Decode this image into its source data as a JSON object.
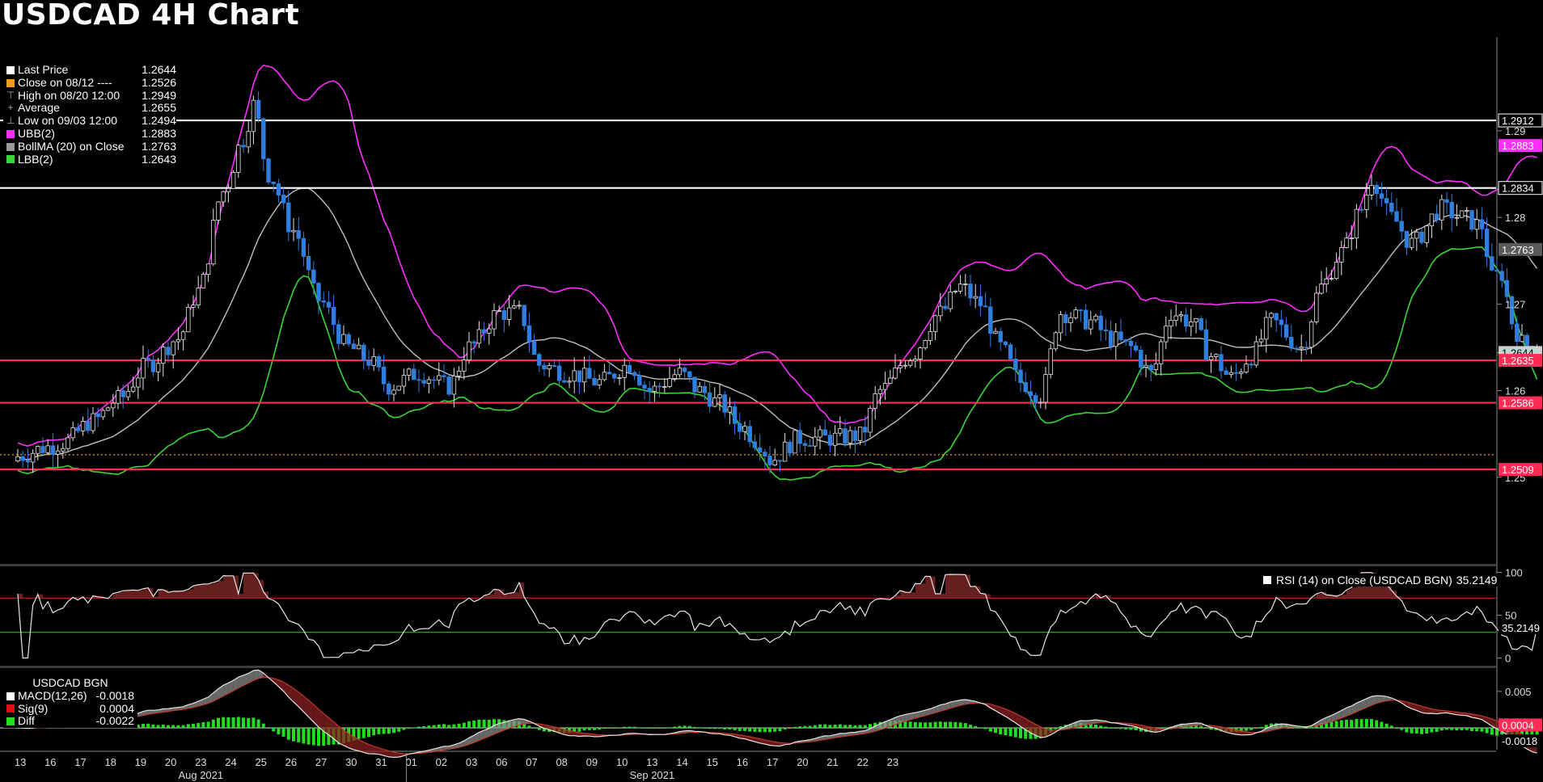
{
  "title": "USDCAD 4H Chart",
  "colors": {
    "up_fill": "#000000",
    "up_stroke": "#e6e6e6",
    "down_fill": "#2f7fe0",
    "ubb": "#ff2dff",
    "lbb": "#38d636",
    "bollma": "#bfbfbf",
    "resistance": "#ffffff",
    "support": "#ff2d55",
    "close_line": "#f39c12",
    "rsi_line": "#e6e6e6",
    "macd_line": "#e6e6e6",
    "signal_line": "#c0392b",
    "diff_hist": "#22dd22"
  },
  "main_legend": [
    {
      "label": "Last Price",
      "value": "1.2644",
      "swatch": "#ffffff",
      "glyph": ""
    },
    {
      "label": "Close on 08/12 ----",
      "value": "1.2526",
      "swatch": "#f39c12",
      "glyph": ""
    },
    {
      "label": "High on 08/20 12:00",
      "value": "1.2949",
      "swatch": "",
      "glyph": "⊤"
    },
    {
      "label": "Average",
      "value": "1.2655",
      "swatch": "",
      "glyph": "+"
    },
    {
      "label": "Low on 09/03 12:00",
      "value": "1.2494",
      "swatch": "",
      "glyph": "⊥"
    },
    {
      "label": "UBB(2)",
      "value": "1.2883",
      "swatch": "#ff2dff",
      "glyph": ""
    },
    {
      "label": "BollMA (20)  on Close",
      "value": "1.2763",
      "swatch": "#9a9a9a",
      "glyph": ""
    },
    {
      "label": "LBB(2)",
      "value": "1.2643",
      "swatch": "#38d636",
      "glyph": ""
    }
  ],
  "rsi_legend": {
    "label": "RSI (14)  on Close (USDCAD BGN)",
    "value": "35.2149"
  },
  "macd_legend": {
    "header": "USDCAD BGN",
    "items": [
      {
        "label": "MACD(12,26)",
        "value": "-0.0018",
        "swatch": "#ffffff"
      },
      {
        "label": "Sig(9)",
        "value": "0.0004",
        "swatch": "#e01010"
      },
      {
        "label": "Diff",
        "value": "-0.0022",
        "swatch": "#22dd22"
      }
    ]
  },
  "chart_data": [
    {
      "type": "candlestick",
      "title": "USDCAD 4H Chart",
      "ylim": [
        1.24,
        1.301
      ],
      "y_ticks": [
        "1.25",
        "1.26",
        "1.27",
        "1.28",
        "1.29"
      ],
      "y_tick_values": [
        1.25,
        1.26,
        1.27,
        1.28,
        1.29
      ],
      "x_day_labels": [
        "13",
        "16",
        "17",
        "18",
        "19",
        "20",
        "23",
        "24",
        "25",
        "26",
        "27",
        "30",
        "31",
        "01",
        "02",
        "03",
        "06",
        "07",
        "08",
        "09",
        "10",
        "13",
        "14",
        "15",
        "16",
        "17",
        "20",
        "21",
        "22",
        "23"
      ],
      "x_month_labels": [
        {
          "label": "Aug 2021",
          "day_index": 6
        },
        {
          "label": "Sep 2021",
          "day_index": 21
        }
      ],
      "month_divider_after_day_index": 12,
      "bars_per_day": 6,
      "price_anchors": [
        [
          0,
          1.2524
        ],
        [
          6,
          1.2535
        ],
        [
          9,
          1.254
        ],
        [
          15,
          1.2565
        ],
        [
          20,
          1.259
        ],
        [
          26,
          1.263
        ],
        [
          32,
          1.266
        ],
        [
          36,
          1.2715
        ],
        [
          41,
          1.283
        ],
        [
          45,
          1.289
        ],
        [
          47,
          1.293
        ],
        [
          50,
          1.285
        ],
        [
          55,
          1.2785
        ],
        [
          60,
          1.2705
        ],
        [
          66,
          1.265
        ],
        [
          70,
          1.2635
        ],
        [
          74,
          1.2605
        ],
        [
          80,
          1.262
        ],
        [
          86,
          1.2605
        ],
        [
          90,
          1.265
        ],
        [
          96,
          1.269
        ],
        [
          100,
          1.269
        ],
        [
          104,
          1.263
        ],
        [
          110,
          1.262
        ],
        [
          116,
          1.261
        ],
        [
          122,
          1.263
        ],
        [
          126,
          1.26
        ],
        [
          132,
          1.262
        ],
        [
          136,
          1.26
        ],
        [
          140,
          1.2585
        ],
        [
          144,
          1.256
        ],
        [
          148,
          1.254
        ],
        [
          150,
          1.252
        ],
        [
          156,
          1.2545
        ],
        [
          162,
          1.2545
        ],
        [
          168,
          1.2548
        ],
        [
          172,
          1.26
        ],
        [
          178,
          1.264
        ],
        [
          184,
          1.269
        ],
        [
          188,
          1.272
        ],
        [
          192,
          1.27
        ],
        [
          196,
          1.265
        ],
        [
          200,
          1.261
        ],
        [
          204,
          1.2595
        ],
        [
          208,
          1.269
        ],
        [
          214,
          1.268
        ],
        [
          218,
          1.266
        ],
        [
          222,
          1.265
        ],
        [
          226,
          1.262
        ],
        [
          230,
          1.269
        ],
        [
          234,
          1.268
        ],
        [
          238,
          1.264
        ],
        [
          242,
          1.2615
        ],
        [
          246,
          1.264
        ],
        [
          250,
          1.268
        ],
        [
          256,
          1.265
        ],
        [
          260,
          1.272
        ],
        [
          264,
          1.276
        ],
        [
          268,
          1.281
        ],
        [
          270,
          1.2845
        ],
        [
          274,
          1.28
        ],
        [
          278,
          1.277
        ],
        [
          284,
          1.281
        ],
        [
          288,
          1.28
        ],
        [
          292,
          1.279
        ],
        [
          294,
          1.273
        ],
        [
          296,
          1.2735
        ],
        [
          298,
          1.268
        ],
        [
          300,
          1.2655
        ],
        [
          303,
          1.2644
        ]
      ],
      "series": [
        {
          "name": "Last Price",
          "value": 1.2644
        },
        {
          "name": "Close on 08/12",
          "value": 1.2526
        },
        {
          "name": "High on 08/20 12:00",
          "value": 1.2949
        },
        {
          "name": "Average",
          "value": 1.2655
        },
        {
          "name": "Low on 09/03 12:00",
          "value": 1.2494
        },
        {
          "name": "UBB(2)",
          "value": 1.2883
        },
        {
          "name": "BollMA (20)  on Close",
          "value": 1.2763
        },
        {
          "name": "LBB(2)",
          "value": 1.2643
        }
      ],
      "horizontal_lines": [
        {
          "value": 1.2912,
          "label": "1.2912",
          "kind": "resistance"
        },
        {
          "value": 1.2834,
          "label": "1.2834",
          "kind": "resistance"
        },
        {
          "value": 1.2635,
          "label": "1.2635",
          "kind": "support"
        },
        {
          "value": 1.2586,
          "label": "1.2586",
          "kind": "support"
        },
        {
          "value": 1.2509,
          "label": "1.2509",
          "kind": "support"
        }
      ],
      "axis_tags": [
        {
          "value": 1.2883,
          "label": "1.2883",
          "kind": "ubb"
        },
        {
          "value": 1.2763,
          "label": "1.2763",
          "kind": "bollma"
        },
        {
          "value": 1.2644,
          "label": "1.2644",
          "kind": "last"
        }
      ],
      "grid": false,
      "legend_position": "top-left"
    },
    {
      "type": "line",
      "ylim": [
        -8,
        108
      ],
      "y_ticks": [
        "100",
        "50",
        "0"
      ],
      "y_tick_values": [
        100,
        50,
        0
      ],
      "overbought": 70,
      "oversold": 30,
      "current": 35.2149,
      "current_label": "35.2149",
      "legend_position": "top-right"
    },
    {
      "type": "bar",
      "ylim": [
        -0.003,
        0.0082
      ],
      "y_ticks": [
        "0.005",
        "0"
      ],
      "y_tick_values": [
        0.005,
        0
      ],
      "current_macd": -0.0018,
      "current_macd_label": "-0.0018",
      "current_signal": 0.0004,
      "current_signal_label": "0.0004",
      "current_diff": -0.0022,
      "legend_position": "top-left"
    }
  ]
}
